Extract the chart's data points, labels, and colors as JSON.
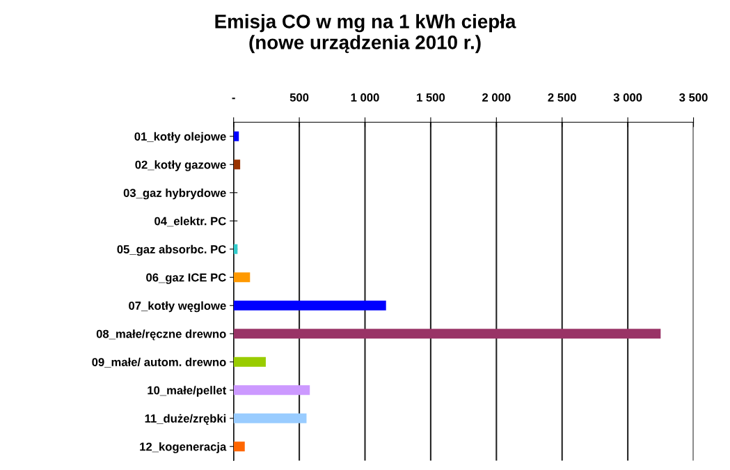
{
  "chart_data": {
    "type": "bar",
    "orientation": "horizontal",
    "title": "Emisja CO w mg na 1 kWh ciepła\n(nowe urządzenia 2010 r.)",
    "categories": [
      "01_kotły olejowe",
      "02_kotły gazowe",
      "03_gaz hybrydowe",
      "04_elektr. PC",
      "05_gaz absorbc. PC",
      "06_gaz ICE PC",
      "07_kotły węglowe",
      "08_małe/ręczne drewno",
      "09_małe/ autom. drewno",
      "10_małe/pellet",
      "11_duże/zrębki",
      "12_kogeneracja"
    ],
    "values": [
      40,
      50,
      0,
      0,
      30,
      125,
      1160,
      3250,
      245,
      580,
      555,
      85
    ],
    "colors": [
      "#0000ff",
      "#993300",
      "#808080",
      "#808080",
      "#33cccc",
      "#ff9900",
      "#0000ff",
      "#993366",
      "#99cc00",
      "#cc99ff",
      "#99ccff",
      "#ff6600"
    ],
    "xlim": [
      0,
      3500
    ],
    "xticks": [
      {
        "value": 0,
        "label": "-"
      },
      500,
      {
        "value": 1000,
        "label": "1 000"
      },
      {
        "value": 1500,
        "label": "1 500"
      },
      {
        "value": 2000,
        "label": "2 000"
      },
      {
        "value": 2500,
        "label": "2 500"
      },
      {
        "value": 3000,
        "label": "3 000"
      },
      {
        "value": 3500,
        "label": "3 500"
      }
    ],
    "grid": "x"
  }
}
